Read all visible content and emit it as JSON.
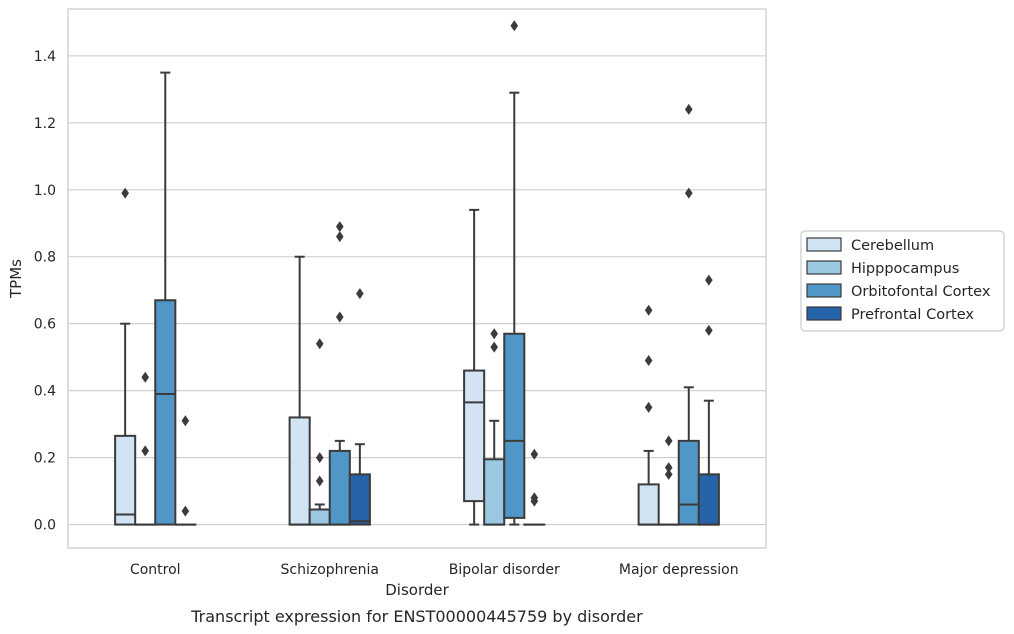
{
  "chart_data": {
    "type": "boxplot",
    "title": "",
    "caption": "Transcript expression for ENST00000445759 by disorder",
    "xlabel": "Disorder",
    "ylabel": "TPMs",
    "ylim": [
      -0.07,
      1.54
    ],
    "yticks": [
      0.0,
      0.2,
      0.4,
      0.6,
      0.8,
      1.0,
      1.2,
      1.4
    ],
    "ytick_labels": [
      "0.0",
      "0.2",
      "0.4",
      "0.6",
      "0.8",
      "1.0",
      "1.2",
      "1.4"
    ],
    "grid": "horizontal",
    "legend_position": "right",
    "categories": [
      "Control",
      "Schizophrenia",
      "Bipolar disorder",
      "Major depression"
    ],
    "series": [
      {
        "name": "Cerebellum",
        "color": "#d2e3f3",
        "boxes": [
          {
            "q1": 0.0,
            "median": 0.03,
            "q3": 0.265,
            "whisker_low": 0.0,
            "whisker_high": 0.6,
            "outliers": [
              0.99
            ]
          },
          {
            "q1": 0.0,
            "median": 0.0,
            "q3": 0.32,
            "whisker_low": 0.0,
            "whisker_high": 0.8,
            "outliers": []
          },
          {
            "q1": 0.07,
            "median": 0.365,
            "q3": 0.46,
            "whisker_low": 0.0,
            "whisker_high": 0.94,
            "outliers": []
          },
          {
            "q1": 0.0,
            "median": 0.0,
            "q3": 0.12,
            "whisker_low": 0.0,
            "whisker_high": 0.22,
            "outliers": [
              0.35,
              0.49,
              0.64
            ]
          }
        ]
      },
      {
        "name": "Hipppocampus",
        "color": "#9ac8e0",
        "boxes": [
          {
            "q1": 0.0,
            "median": 0.0,
            "q3": 0.0,
            "whisker_low": 0.0,
            "whisker_high": 0.0,
            "outliers": [
              0.22,
              0.44
            ]
          },
          {
            "q1": 0.0,
            "median": 0.0,
            "q3": 0.045,
            "whisker_low": 0.0,
            "whisker_high": 0.06,
            "outliers": [
              0.13,
              0.2,
              0.54
            ]
          },
          {
            "q1": 0.0,
            "median": 0.0,
            "q3": 0.195,
            "whisker_low": 0.0,
            "whisker_high": 0.31,
            "outliers": [
              0.53,
              0.57
            ]
          },
          {
            "q1": 0.0,
            "median": 0.0,
            "q3": 0.0,
            "whisker_low": 0.0,
            "whisker_high": 0.0,
            "outliers": [
              0.15,
              0.17,
              0.25
            ]
          }
        ]
      },
      {
        "name": "Orbitofontal Cortex",
        "color": "#5096c7",
        "boxes": [
          {
            "q1": 0.0,
            "median": 0.39,
            "q3": 0.67,
            "whisker_low": 0.0,
            "whisker_high": 1.35,
            "outliers": []
          },
          {
            "q1": 0.0,
            "median": 0.0,
            "q3": 0.22,
            "whisker_low": 0.0,
            "whisker_high": 0.25,
            "outliers": [
              0.62,
              0.86,
              0.89
            ]
          },
          {
            "q1": 0.02,
            "median": 0.25,
            "q3": 0.57,
            "whisker_low": 0.0,
            "whisker_high": 1.29,
            "outliers": [
              1.49
            ]
          },
          {
            "q1": 0.0,
            "median": 0.06,
            "q3": 0.25,
            "whisker_low": 0.0,
            "whisker_high": 0.41,
            "outliers": [
              0.99,
              1.24
            ]
          }
        ]
      },
      {
        "name": "Prefrontal Cortex",
        "color": "#2663a8",
        "boxes": [
          {
            "q1": 0.0,
            "median": 0.0,
            "q3": 0.0,
            "whisker_low": 0.0,
            "whisker_high": 0.0,
            "outliers": [
              0.04,
              0.31
            ]
          },
          {
            "q1": 0.0,
            "median": 0.01,
            "q3": 0.15,
            "whisker_low": 0.0,
            "whisker_high": 0.24,
            "outliers": [
              0.69
            ]
          },
          {
            "q1": 0.0,
            "median": 0.0,
            "q3": 0.0,
            "whisker_low": 0.0,
            "whisker_high": 0.0,
            "outliers": [
              0.07,
              0.08,
              0.21
            ]
          },
          {
            "q1": 0.0,
            "median": 0.0,
            "q3": 0.15,
            "whisker_low": 0.0,
            "whisker_high": 0.37,
            "outliers": [
              0.58,
              0.73
            ]
          }
        ]
      }
    ]
  }
}
